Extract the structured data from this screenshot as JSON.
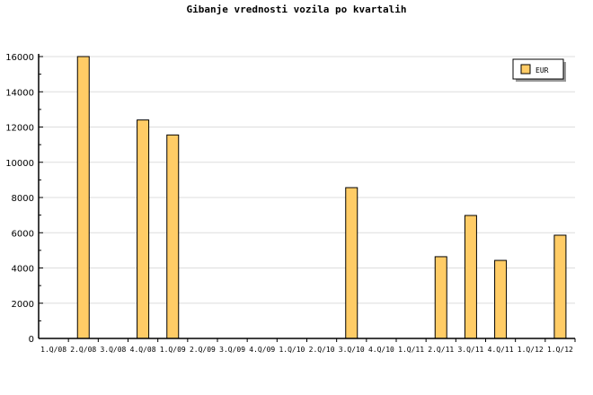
{
  "chart_data": {
    "type": "bar",
    "title": "Gibanje vrednosti vozila po kvartalih",
    "xlabel": "",
    "ylabel": "",
    "ylim": [
      0,
      16000
    ],
    "yticks": [
      0,
      2000,
      4000,
      6000,
      8000,
      10000,
      12000,
      14000,
      16000
    ],
    "grid": true,
    "legend_position": "top-right",
    "categories": [
      "1.Q/08",
      "2.Q/08",
      "3.Q/08",
      "4.Q/08",
      "1.Q/09",
      "2.Q/09",
      "3.Q/09",
      "4.Q/09",
      "1.Q/10",
      "2.Q/10",
      "3.Q/10",
      "4.Q/10",
      "1.Q/11",
      "2.Q/11",
      "3.Q/11",
      "4.Q/11",
      "1.Q/12",
      "1.Q/12"
    ],
    "series": [
      {
        "name": "EUR",
        "color": "#ffcc66",
        "values": [
          0,
          16000,
          0,
          12400,
          11550,
          0,
          0,
          0,
          0,
          0,
          8560,
          0,
          0,
          4640,
          6980,
          4430,
          0,
          5860
        ]
      }
    ]
  }
}
